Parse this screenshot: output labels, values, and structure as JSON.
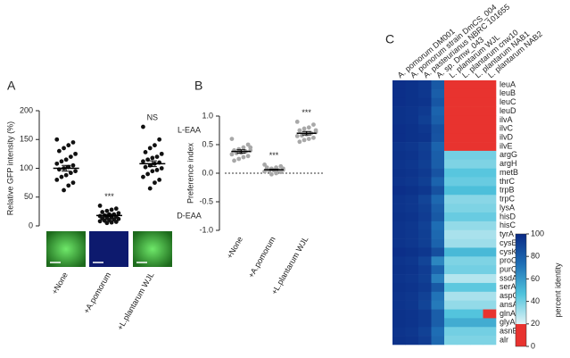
{
  "chart_data": [
    {
      "type": "strip",
      "panel": "A",
      "ylabel": "Relative GFP intensity (%)",
      "categories": [
        "+None",
        "+A.pomorum",
        "+L.plantarum WJL"
      ],
      "series": [
        [
          150,
          145,
          140,
          135,
          130,
          125,
          120,
          115,
          112,
          108,
          105,
          102,
          100,
          98,
          95,
          92,
          88,
          85,
          80,
          75,
          70,
          62
        ],
        [
          35,
          30,
          28,
          26,
          24,
          22,
          20,
          20,
          18,
          17,
          16,
          15,
          14,
          13,
          12,
          11,
          10,
          9,
          8,
          7,
          6,
          5
        ],
        [
          172,
          150,
          140,
          135,
          128,
          125,
          120,
          118,
          115,
          112,
          110,
          108,
          105,
          102,
          100,
          97,
          95,
          90,
          85,
          80,
          75,
          65
        ]
      ],
      "means": [
        100,
        18,
        108
      ],
      "sem": [
        5,
        2,
        5
      ],
      "point_color": "#111111",
      "annotations": [
        {
          "x": "+A.pomorum",
          "text": "***"
        },
        {
          "x": "+L.plantarum WJL",
          "text": "NS"
        }
      ],
      "ylim": [
        0,
        200
      ],
      "yticks": [
        0,
        50,
        100,
        150,
        200
      ]
    },
    {
      "type": "strip",
      "panel": "B",
      "ylabel": "Preference index",
      "categories": [
        "+None",
        "+A.pomorum",
        "+L.plantarum WJL"
      ],
      "series": [
        [
          0.6,
          0.5,
          0.45,
          0.42,
          0.4,
          0.4,
          0.38,
          0.36,
          0.35,
          0.33,
          0.3,
          0.28,
          0.25,
          0.22,
          0.45
        ],
        [
          0.15,
          0.12,
          0.1,
          0.08,
          0.07,
          0.06,
          0.05,
          0.05,
          0.04,
          0.03,
          0.02,
          0.0,
          -0.02,
          0.1,
          0.08
        ],
        [
          0.9,
          0.85,
          0.8,
          0.78,
          0.75,
          0.72,
          0.7,
          0.68,
          0.66,
          0.65,
          0.62,
          0.6,
          0.58,
          0.55,
          0.75
        ]
      ],
      "means": [
        0.38,
        0.06,
        0.7
      ],
      "sem": [
        0.03,
        0.01,
        0.03
      ],
      "point_color": "#a8a8a8",
      "annotations": [
        {
          "x": "+A.pomorum",
          "text": "***"
        },
        {
          "x": "+L.plantarum WJL",
          "text": "***"
        }
      ],
      "side_labels": [
        {
          "text": "L-EAA",
          "color": "#e03030",
          "y": 0.75
        },
        {
          "text": "D-EAA",
          "color": "#2a9a3a",
          "y": -0.75
        }
      ],
      "hline": 0,
      "ylim": [
        -1,
        1
      ],
      "yticks": [
        {
          "value": -1,
          "label": "-1.0"
        },
        {
          "value": -0.5,
          "label": "-0.5"
        },
        {
          "value": 0,
          "label": "0.0"
        },
        {
          "value": 0.5,
          "label": "0.5"
        },
        {
          "value": 1,
          "label": "1.0"
        }
      ]
    },
    {
      "type": "heatmap",
      "panel": "C",
      "x": [
        "A. pomorum DM001",
        "A. pomorum strain DmCS_004",
        "A. pasteurianus NBRC 101655",
        "A. sp. Dmw_043",
        "L. plantarum WJL",
        "L. plantarum cnw10",
        "L. plantarum NAB1",
        "L. plantarum NAB2"
      ],
      "y": [
        "leuA",
        "leuB",
        "leuC",
        "leuD",
        "ilvA",
        "ilvC",
        "ilvD",
        "ilvE",
        "argG",
        "argH",
        "metB",
        "thrC",
        "trpB",
        "trpC",
        "lysA",
        "hisD",
        "hisC",
        "tyrA",
        "cysE",
        "cysK",
        "proC",
        "purQ",
        "ssdA",
        "serA",
        "aspC",
        "ansA",
        "glnA",
        "glyA",
        "asnB",
        "alr"
      ],
      "values": [
        [
          98,
          97,
          95,
          82,
          10,
          10,
          10,
          10
        ],
        [
          98,
          97,
          95,
          80,
          10,
          10,
          10,
          10
        ],
        [
          98,
          97,
          96,
          83,
          10,
          10,
          10,
          10
        ],
        [
          97,
          96,
          94,
          78,
          10,
          10,
          10,
          10
        ],
        [
          97,
          96,
          92,
          80,
          10,
          10,
          10,
          10
        ],
        [
          98,
          97,
          95,
          85,
          10,
          10,
          10,
          10
        ],
        [
          98,
          97,
          96,
          84,
          10,
          10,
          10,
          10
        ],
        [
          96,
          95,
          92,
          78,
          10,
          10,
          10,
          10
        ],
        [
          97,
          96,
          93,
          80,
          40,
          40,
          40,
          40
        ],
        [
          96,
          95,
          92,
          80,
          38,
          38,
          38,
          38
        ],
        [
          97,
          96,
          94,
          84,
          45,
          45,
          45,
          45
        ],
        [
          96,
          95,
          92,
          78,
          42,
          42,
          42,
          42
        ],
        [
          98,
          97,
          95,
          85,
          48,
          48,
          48,
          48
        ],
        [
          96,
          95,
          90,
          76,
          36,
          36,
          36,
          36
        ],
        [
          96,
          95,
          92,
          80,
          38,
          38,
          38,
          38
        ],
        [
          97,
          96,
          93,
          82,
          42,
          42,
          42,
          42
        ],
        [
          96,
          95,
          91,
          74,
          34,
          34,
          34,
          34
        ],
        [
          96,
          95,
          92,
          76,
          30,
          30,
          30,
          30
        ],
        [
          96,
          95,
          92,
          78,
          32,
          32,
          32,
          32
        ],
        [
          98,
          97,
          95,
          86,
          50,
          50,
          50,
          50
        ],
        [
          96,
          95,
          90,
          66,
          38,
          38,
          38,
          38
        ],
        [
          97,
          96,
          93,
          78,
          40,
          40,
          40,
          40
        ],
        [
          96,
          95,
          92,
          68,
          28,
          28,
          28,
          28
        ],
        [
          97,
          96,
          94,
          82,
          44,
          44,
          44,
          44
        ],
        [
          96,
          95,
          91,
          72,
          30,
          30,
          30,
          30
        ],
        [
          96,
          95,
          90,
          70,
          34,
          34,
          34,
          34
        ],
        [
          97,
          96,
          94,
          80,
          46,
          46,
          46,
          15
        ],
        [
          97,
          96,
          94,
          80,
          54,
          54,
          54,
          54
        ],
        [
          96,
          95,
          91,
          74,
          40,
          40,
          40,
          40
        ],
        [
          97,
          96,
          93,
          76,
          38,
          38,
          38,
          38
        ]
      ],
      "threshold": 20,
      "colorscale": [
        "#e8332f",
        "#dff3f6",
        "#4fc3dc",
        "#1f6fb5",
        "#0a2a85"
      ],
      "zlabel": "percent identity",
      "zlim": [
        0,
        100
      ],
      "zticks": [
        0,
        20,
        40,
        60,
        80,
        100
      ]
    }
  ]
}
